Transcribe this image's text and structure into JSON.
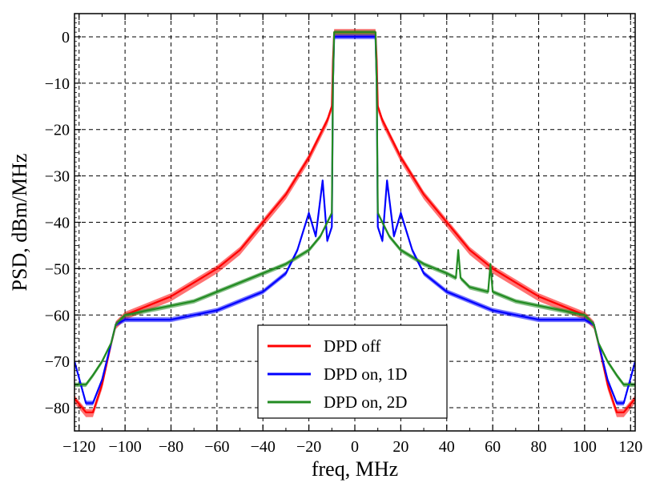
{
  "chart_data": {
    "type": "line",
    "title": "",
    "xlabel": "freq, MHz",
    "ylabel": "PSD, dBm/MHz",
    "xlim": [
      -122,
      122
    ],
    "ylim": [
      -85,
      5
    ],
    "xticks": [
      -120,
      -100,
      -80,
      -60,
      -40,
      -20,
      0,
      20,
      40,
      60,
      80,
      100,
      120
    ],
    "yticks": [
      -80,
      -70,
      -60,
      -50,
      -40,
      -30,
      -20,
      -10,
      0
    ],
    "xtick_labels": [
      "−120",
      "−100",
      "−80",
      "−60",
      "−40",
      "−20",
      "0",
      "20",
      "40",
      "60",
      "80",
      "100",
      "120"
    ],
    "ytick_labels": [
      "−80",
      "−70",
      "−60",
      "−50",
      "−40",
      "−30",
      "−20",
      "−10",
      "0"
    ],
    "grid": true,
    "grid_style": "dashed",
    "legend_position": "bottom-center",
    "series": [
      {
        "name": "DPD off",
        "color": "#ff0000",
        "x": [
          -122,
          -117,
          -114,
          -110,
          -106,
          -104,
          -100,
          -90,
          -80,
          -70,
          -60,
          -50,
          -40,
          -30,
          -20,
          -15,
          -12,
          -10,
          -9.5,
          -9,
          9,
          9.5,
          10,
          12,
          15,
          20,
          30,
          40,
          50,
          60,
          70,
          80,
          90,
          100,
          104,
          106,
          110,
          114,
          117,
          122
        ],
        "y": [
          -78,
          -81,
          -81,
          -75,
          -66,
          -62,
          -60,
          -58,
          -56,
          -53,
          -50,
          -46,
          -40,
          -34,
          -26,
          -21,
          -18,
          -15,
          -5,
          1,
          1,
          -5,
          -15,
          -18,
          -21,
          -26,
          -34,
          -40,
          -46,
          -50,
          -53,
          -56,
          -58,
          -60,
          -62,
          -66,
          -75,
          -81,
          -81,
          -78
        ]
      },
      {
        "name": "DPD on, 1D",
        "color": "#0000ff",
        "x": [
          -122,
          -117,
          -114,
          -110,
          -106,
          -104,
          -100,
          -90,
          -80,
          -70,
          -60,
          -50,
          -40,
          -30,
          -25,
          -20,
          -17,
          -14,
          -12,
          -10,
          -9.5,
          -9,
          9,
          9.5,
          10,
          12,
          14,
          17,
          20,
          25,
          30,
          40,
          50,
          60,
          70,
          80,
          90,
          100,
          104,
          106,
          110,
          114,
          117,
          122
        ],
        "y": [
          -70,
          -79,
          -79,
          -74,
          -66,
          -62,
          -61,
          -61,
          -61,
          -60,
          -59,
          -57,
          -55,
          -51,
          -46,
          -38,
          -43,
          -31,
          -44,
          -41,
          -10,
          0,
          0,
          -10,
          -41,
          -44,
          -31,
          -43,
          -38,
          -46,
          -51,
          -55,
          -57,
          -59,
          -60,
          -61,
          -61,
          -61,
          -62,
          -66,
          -74,
          -79,
          -79,
          -70
        ]
      },
      {
        "name": "DPD on, 2D",
        "color": "#228b22",
        "x": [
          -122,
          -117,
          -114,
          -110,
          -106,
          -104,
          -100,
          -90,
          -80,
          -70,
          -60,
          -50,
          -40,
          -30,
          -20,
          -15,
          -12,
          -10,
          -9.5,
          -9,
          9,
          9.5,
          10,
          12,
          15,
          20,
          30,
          40,
          44,
          45,
          46,
          50,
          58,
          59,
          60,
          70,
          80,
          90,
          100,
          104,
          106,
          110,
          114,
          117,
          122
        ],
        "y": [
          -75,
          -75,
          -73,
          -70,
          -66,
          -62,
          -60,
          -59,
          -58,
          -57,
          -55,
          -53,
          -51,
          -49,
          -46,
          -43,
          -40,
          -38,
          -10,
          1,
          1,
          -10,
          -38,
          -40,
          -43,
          -46,
          -49,
          -51,
          -52,
          -46,
          -52,
          -54,
          -55,
          -49,
          -55,
          -57,
          -58,
          -59,
          -60,
          -62,
          -66,
          -70,
          -73,
          -75,
          -75
        ]
      }
    ]
  }
}
